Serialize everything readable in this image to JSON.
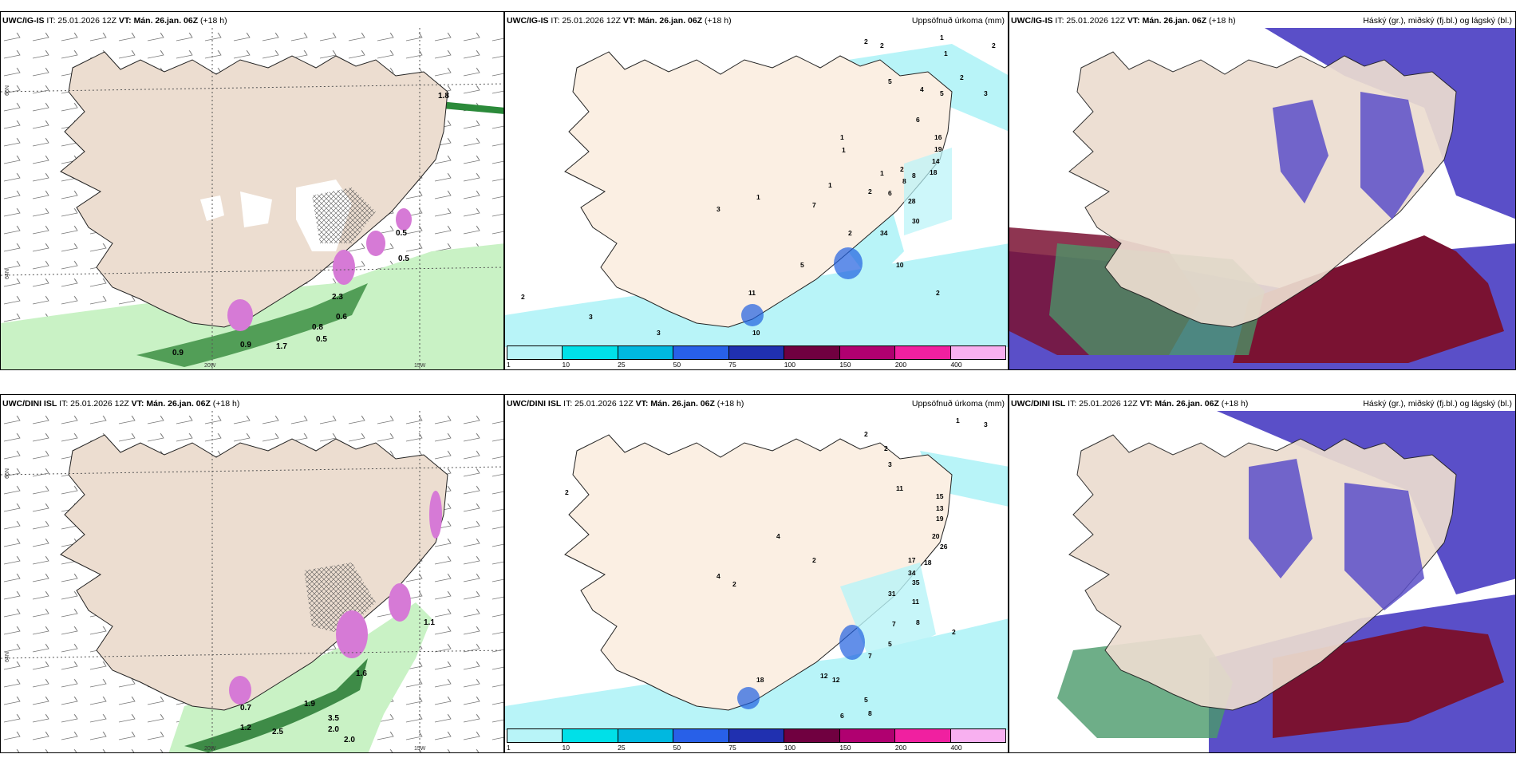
{
  "panels": [
    {
      "model": "UWC/IG-IS",
      "it": "IT: 25.01.2026 12Z",
      "vt": "VT: Mán. 26.jan. 06Z",
      "lead": "(+18 h)",
      "title": ""
    },
    {
      "model": "UWC/IG-IS",
      "it": "IT: 25.01.2026 12Z",
      "vt": "VT: Mán. 26.jan. 06Z",
      "lead": "(+18 h)",
      "title": "Uppsöfnuð úrkoma (mm)"
    },
    {
      "model": "UWC/IG-IS",
      "it": "IT: 25.01.2026 12Z",
      "vt": "VT: Mán. 26.jan. 06Z",
      "lead": "(+18 h)",
      "title": "Háský (gr.), miðský (fj.bl.) og lágský (bl.)"
    },
    {
      "model": "UWC/DINI ISL",
      "it": "IT: 25.01.2026 12Z",
      "vt": "VT: Mán. 26.jan. 06Z",
      "lead": "(+18 h)",
      "title": ""
    },
    {
      "model": "UWC/DINI ISL",
      "it": "IT: 25.01.2026 12Z",
      "vt": "VT: Mán. 26.jan. 06Z",
      "lead": "(+18 h)",
      "title": "Uppsöfnuð úrkoma (mm)"
    },
    {
      "model": "UWC/DINI ISL",
      "it": "IT: 25.01.2026 12Z",
      "vt": "VT: Mán. 26.jan. 06Z",
      "lead": "(+18 h)",
      "title": "Háský (gr.), miðský (fj.bl.) og lágský (bl.)"
    }
  ],
  "axes": {
    "lat66": "66N",
    "lat64": "64N",
    "lon20": "20W",
    "lon15": "15W"
  },
  "colorbar": {
    "labels": [
      "1",
      "10",
      "25",
      "50",
      "75",
      "100",
      "150",
      "200",
      "400"
    ],
    "colors": [
      "#b8f4f8",
      "#00e0e8",
      "#00b8e0",
      "#2860e8",
      "#2030b0",
      "#700040",
      "#b00070",
      "#f020a0",
      "#f8b0f0"
    ]
  },
  "precip_labels_top": [
    "2",
    "2",
    "1",
    "1",
    "2",
    "5",
    "4",
    "5",
    "6",
    "16",
    "19",
    "14",
    "18",
    "1",
    "1",
    "1",
    "2",
    "1",
    "8",
    "8",
    "2",
    "6",
    "28",
    "30",
    "34",
    "10",
    "3",
    "5",
    "7",
    "11",
    "10",
    "1",
    "2",
    "2",
    "3",
    "2",
    "3",
    "3",
    "2"
  ],
  "precip_labels_bottom": [
    "1",
    "2",
    "2",
    "3",
    "11",
    "15",
    "13",
    "19",
    "20",
    "26",
    "17",
    "18",
    "34",
    "35",
    "31",
    "11",
    "7",
    "8",
    "2",
    "4",
    "5",
    "2",
    "12",
    "7",
    "5",
    "8",
    "6",
    "3",
    "2",
    "4",
    "2",
    "12",
    "18"
  ],
  "vis_labels_top": [
    "0.5",
    "0.5",
    "2.3",
    "0.6",
    "0.8",
    "0.5",
    "0.9",
    "0.9",
    "1.7",
    "1.8"
  ],
  "vis_labels_bottom": [
    "1.1",
    "1.6",
    "1.9",
    "3.5",
    "2.0",
    "2.5",
    "2.0",
    "1.2",
    "0.7"
  ]
}
